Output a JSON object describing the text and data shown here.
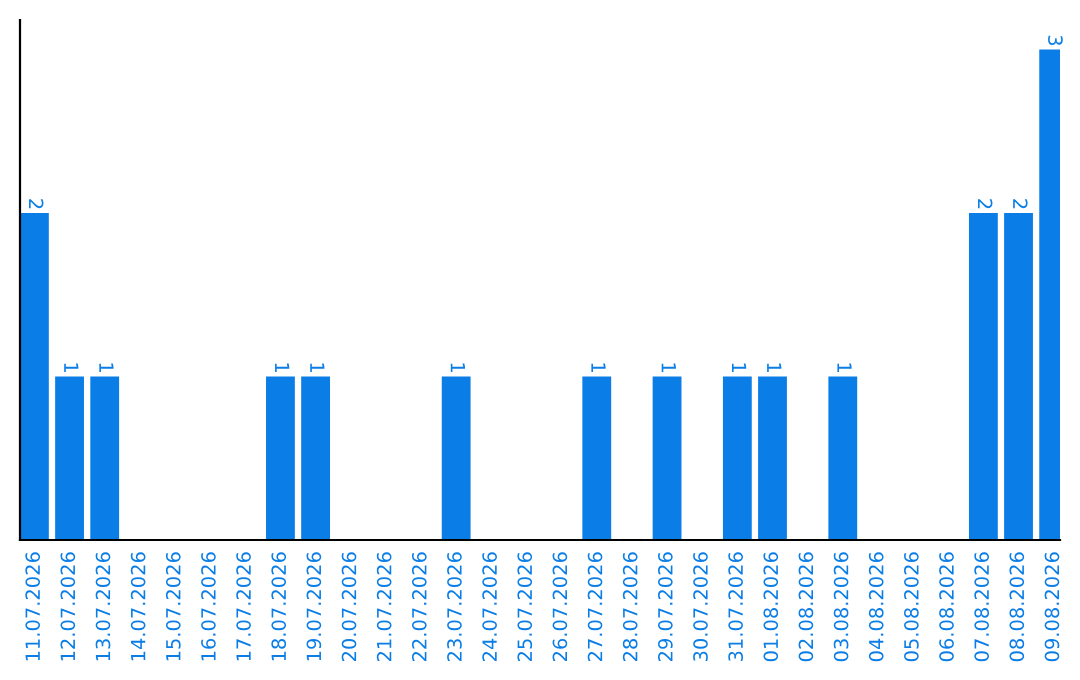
{
  "chart_data": {
    "type": "bar",
    "categories": [
      "11.07.2026",
      "12.07.2026",
      "13.07.2026",
      "14.07.2026",
      "15.07.2026",
      "16.07.2026",
      "17.07.2026",
      "18.07.2026",
      "19.07.2026",
      "20.07.2026",
      "21.07.2026",
      "22.07.2026",
      "23.07.2026",
      "24.07.2026",
      "25.07.2026",
      "26.07.2026",
      "27.07.2026",
      "28.07.2026",
      "29.07.2026",
      "30.07.2026",
      "31.07.2026",
      "01.08.2026",
      "02.08.2026",
      "03.08.2026",
      "04.08.2026",
      "05.08.2026",
      "06.08.2026",
      "07.08.2026",
      "08.08.2026",
      "09.08.2026"
    ],
    "values": [
      2,
      1,
      1,
      0,
      0,
      0,
      0,
      1,
      1,
      0,
      0,
      0,
      1,
      0,
      0,
      0,
      1,
      0,
      1,
      0,
      1,
      1,
      0,
      1,
      0,
      0,
      0,
      2,
      2,
      3
    ],
    "value_labels": [
      "2",
      "1",
      "1",
      null,
      null,
      null,
      null,
      "1",
      "1",
      null,
      null,
      null,
      "1",
      null,
      null,
      null,
      "1",
      null,
      "1",
      null,
      "1",
      "1",
      null,
      "1",
      null,
      null,
      null,
      "2",
      "2",
      "3"
    ],
    "color": "#0a7de6",
    "tick_labels": "x",
    "grid": false,
    "legend": false
  }
}
